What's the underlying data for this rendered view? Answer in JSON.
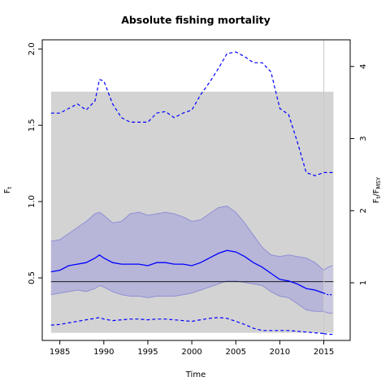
{
  "chart_data": {
    "type": "line",
    "title": "Absolute fishing mortality",
    "xlabel": "Time",
    "ylabel": "F",
    "ylabel_sub": "t",
    "y2label": "F",
    "y2label_sub": "t",
    "y2label_mid": "/F",
    "y2label_sub2": "MSY",
    "xlim": [
      1983,
      2018
    ],
    "ylim": [
      0.09,
      2.06
    ],
    "y2lim": [
      0.2,
      4.37
    ],
    "x_ticks": [
      1985,
      1990,
      1995,
      2000,
      2005,
      2010,
      2015
    ],
    "y_ticks": [
      "0.5",
      "1.0",
      "1.5",
      "2.0"
    ],
    "y_tick_values": [
      0.5,
      1.0,
      1.5,
      2.0
    ],
    "y2_ticks": [
      "1",
      "2",
      "3",
      "4"
    ],
    "y2_tick_values": [
      1,
      2,
      3,
      4
    ],
    "fmsy": 0.475,
    "gray_band": {
      "x": [
        1984,
        2016.1
      ],
      "y": [
        0.14,
        1.72
      ],
      "color": "#d3d3d3"
    },
    "vline_x": 2015,
    "colors": {
      "estimate": "#0000ff",
      "ci_fill": "#b7b6d8",
      "ci_border": "#8f8fd6",
      "band": "#d3d3d3",
      "ref": "#000000"
    },
    "x": [
      1984,
      1985,
      1986,
      1987,
      1988,
      1989,
      1989.5,
      1990,
      1991,
      1992,
      1993,
      1994,
      1995,
      1996,
      1997,
      1998,
      1999,
      2000,
      2001,
      2002,
      2003,
      2004,
      2005,
      2006,
      2007,
      2008,
      2009,
      2010,
      2011,
      2012,
      2013,
      2014,
      2015
    ],
    "series": [
      {
        "name": "estimate",
        "style": "solid",
        "values": [
          0.54,
          0.55,
          0.58,
          0.59,
          0.6,
          0.63,
          0.65,
          0.63,
          0.6,
          0.59,
          0.59,
          0.59,
          0.58,
          0.6,
          0.6,
          0.59,
          0.59,
          0.58,
          0.6,
          0.63,
          0.66,
          0.68,
          0.67,
          0.64,
          0.6,
          0.57,
          0.53,
          0.49,
          0.48,
          0.46,
          0.43,
          0.42,
          0.4
        ]
      },
      {
        "name": "ci_upper",
        "style": "band",
        "values": [
          0.74,
          0.75,
          0.79,
          0.83,
          0.87,
          0.92,
          0.93,
          0.91,
          0.86,
          0.87,
          0.92,
          0.93,
          0.91,
          0.92,
          0.93,
          0.92,
          0.9,
          0.87,
          0.88,
          0.92,
          0.96,
          0.97,
          0.93,
          0.86,
          0.78,
          0.7,
          0.65,
          0.64,
          0.65,
          0.64,
          0.63,
          0.6,
          0.55
        ]
      },
      {
        "name": "ci_lower",
        "style": "band",
        "values": [
          0.39,
          0.4,
          0.41,
          0.42,
          0.41,
          0.43,
          0.45,
          0.44,
          0.41,
          0.39,
          0.38,
          0.38,
          0.37,
          0.38,
          0.38,
          0.38,
          0.39,
          0.4,
          0.42,
          0.44,
          0.46,
          0.48,
          0.48,
          0.47,
          0.46,
          0.45,
          0.41,
          0.38,
          0.37,
          0.33,
          0.29,
          0.28,
          0.28
        ]
      },
      {
        "name": "upper_dashed",
        "style": "dashed",
        "values": [
          1.58,
          1.58,
          1.61,
          1.64,
          1.6,
          1.66,
          1.8,
          1.79,
          1.64,
          1.55,
          1.52,
          1.52,
          1.52,
          1.58,
          1.59,
          1.55,
          1.58,
          1.6,
          1.7,
          1.78,
          1.87,
          1.97,
          1.98,
          1.95,
          1.91,
          1.91,
          1.85,
          1.61,
          1.57,
          1.39,
          1.19,
          1.17,
          1.19
        ]
      },
      {
        "name": "lower_dashed",
        "style": "dashed",
        "values": [
          0.19,
          0.195,
          0.205,
          0.215,
          0.225,
          0.235,
          0.24,
          0.23,
          0.22,
          0.225,
          0.23,
          0.23,
          0.225,
          0.23,
          0.23,
          0.225,
          0.22,
          0.215,
          0.225,
          0.235,
          0.24,
          0.235,
          0.215,
          0.195,
          0.17,
          0.155,
          0.155,
          0.155,
          0.155,
          0.15,
          0.145,
          0.14,
          0.135
        ]
      }
    ],
    "extension": {
      "x": [
        2015,
        2015.5,
        2016
      ],
      "estimate": [
        0.4,
        0.39,
        0.39
      ],
      "ci_upper": [
        0.55,
        0.57,
        0.58
      ],
      "ci_lower": [
        0.28,
        0.27,
        0.27
      ],
      "upper_dashed": [
        1.19,
        1.19,
        1.19
      ],
      "lower_dashed": [
        0.135,
        0.13,
        0.13
      ]
    }
  }
}
